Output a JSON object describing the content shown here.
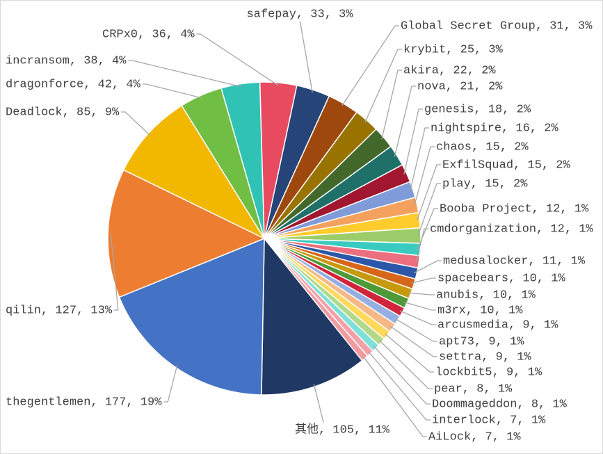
{
  "chart_data": {
    "type": "pie",
    "categories": [
      "safepay",
      "Global Secret Group",
      "krybit",
      "akira",
      "nova",
      "genesis",
      "nightspire",
      "chaos",
      "ExfilSquad",
      "play",
      "Booba Project",
      "cmdorganization",
      "medusalocker",
      "spacebears",
      "anubis",
      "m3rx",
      "arcusmedia",
      "apt73",
      "settra",
      "lockbit5",
      "pear",
      "Doommageddon",
      "interlock",
      "AiLock",
      "其他",
      "thegentlemen",
      "qilin",
      "Deadlock",
      "dragonforce",
      "incransom",
      "CRPx0"
    ],
    "values": [
      33,
      31,
      25,
      22,
      21,
      18,
      16,
      15,
      15,
      15,
      12,
      12,
      11,
      10,
      10,
      10,
      9,
      9,
      9,
      9,
      8,
      8,
      7,
      7,
      105,
      177,
      127,
      85,
      42,
      38,
      36
    ],
    "value_labels": [
      "safepay, 33, 3%",
      "Global Secret Group, 31, 3%",
      "krybit, 25, 3%",
      "akira, 22, 2%",
      "nova, 21, 2%",
      "genesis, 18, 2%",
      "nightspire, 16, 2%",
      "chaos, 15, 2%",
      "ExfilSquad, 15, 2%",
      "play, 15, 2%",
      "Booba Project, 12, 1%",
      "cmdorganization, 12, 1%",
      "medusalocker, 11, 1%",
      "spacebears, 10, 1%",
      "anubis, 10, 1%",
      "m3rx, 10, 1%",
      "arcusmedia, 9, 1%",
      "apt73, 9, 1%",
      "settra, 9, 1%",
      "lockbit5, 9, 1%",
      "pear, 8, 1%",
      "Doommageddon, 8, 1%",
      "interlock, 7, 1%",
      "AiLock, 7, 1%",
      "其他, 105, 11%",
      "thegentlemen, 177, 19%",
      "qilin, 127, 13%",
      "Deadlock, 85, 9%",
      "dragonforce, 42, 4%",
      "incransom, 38, 4%",
      "CRPx0, 36, 4%"
    ],
    "colors": [
      "#264478",
      "#9E480E",
      "#997300",
      "#43682B",
      "#1E7068",
      "#A0172F",
      "#7F9BD9",
      "#F4A15D",
      "#FFCC2E",
      "#9DCD6A",
      "#3ACBC0",
      "#EC6F7F",
      "#2C57A8",
      "#D5661A",
      "#C79A0D",
      "#4E9A38",
      "#D2243A",
      "#95AFE3",
      "#F6B886",
      "#FFD85C",
      "#B2D98A",
      "#7FE0D8",
      "#F4A0A8",
      "#F19AA0",
      "#1F3864",
      "#4472C4",
      "#ED7D31",
      "#F2B800",
      "#70BF44",
      "#30C2B4",
      "#E84A5F"
    ]
  }
}
